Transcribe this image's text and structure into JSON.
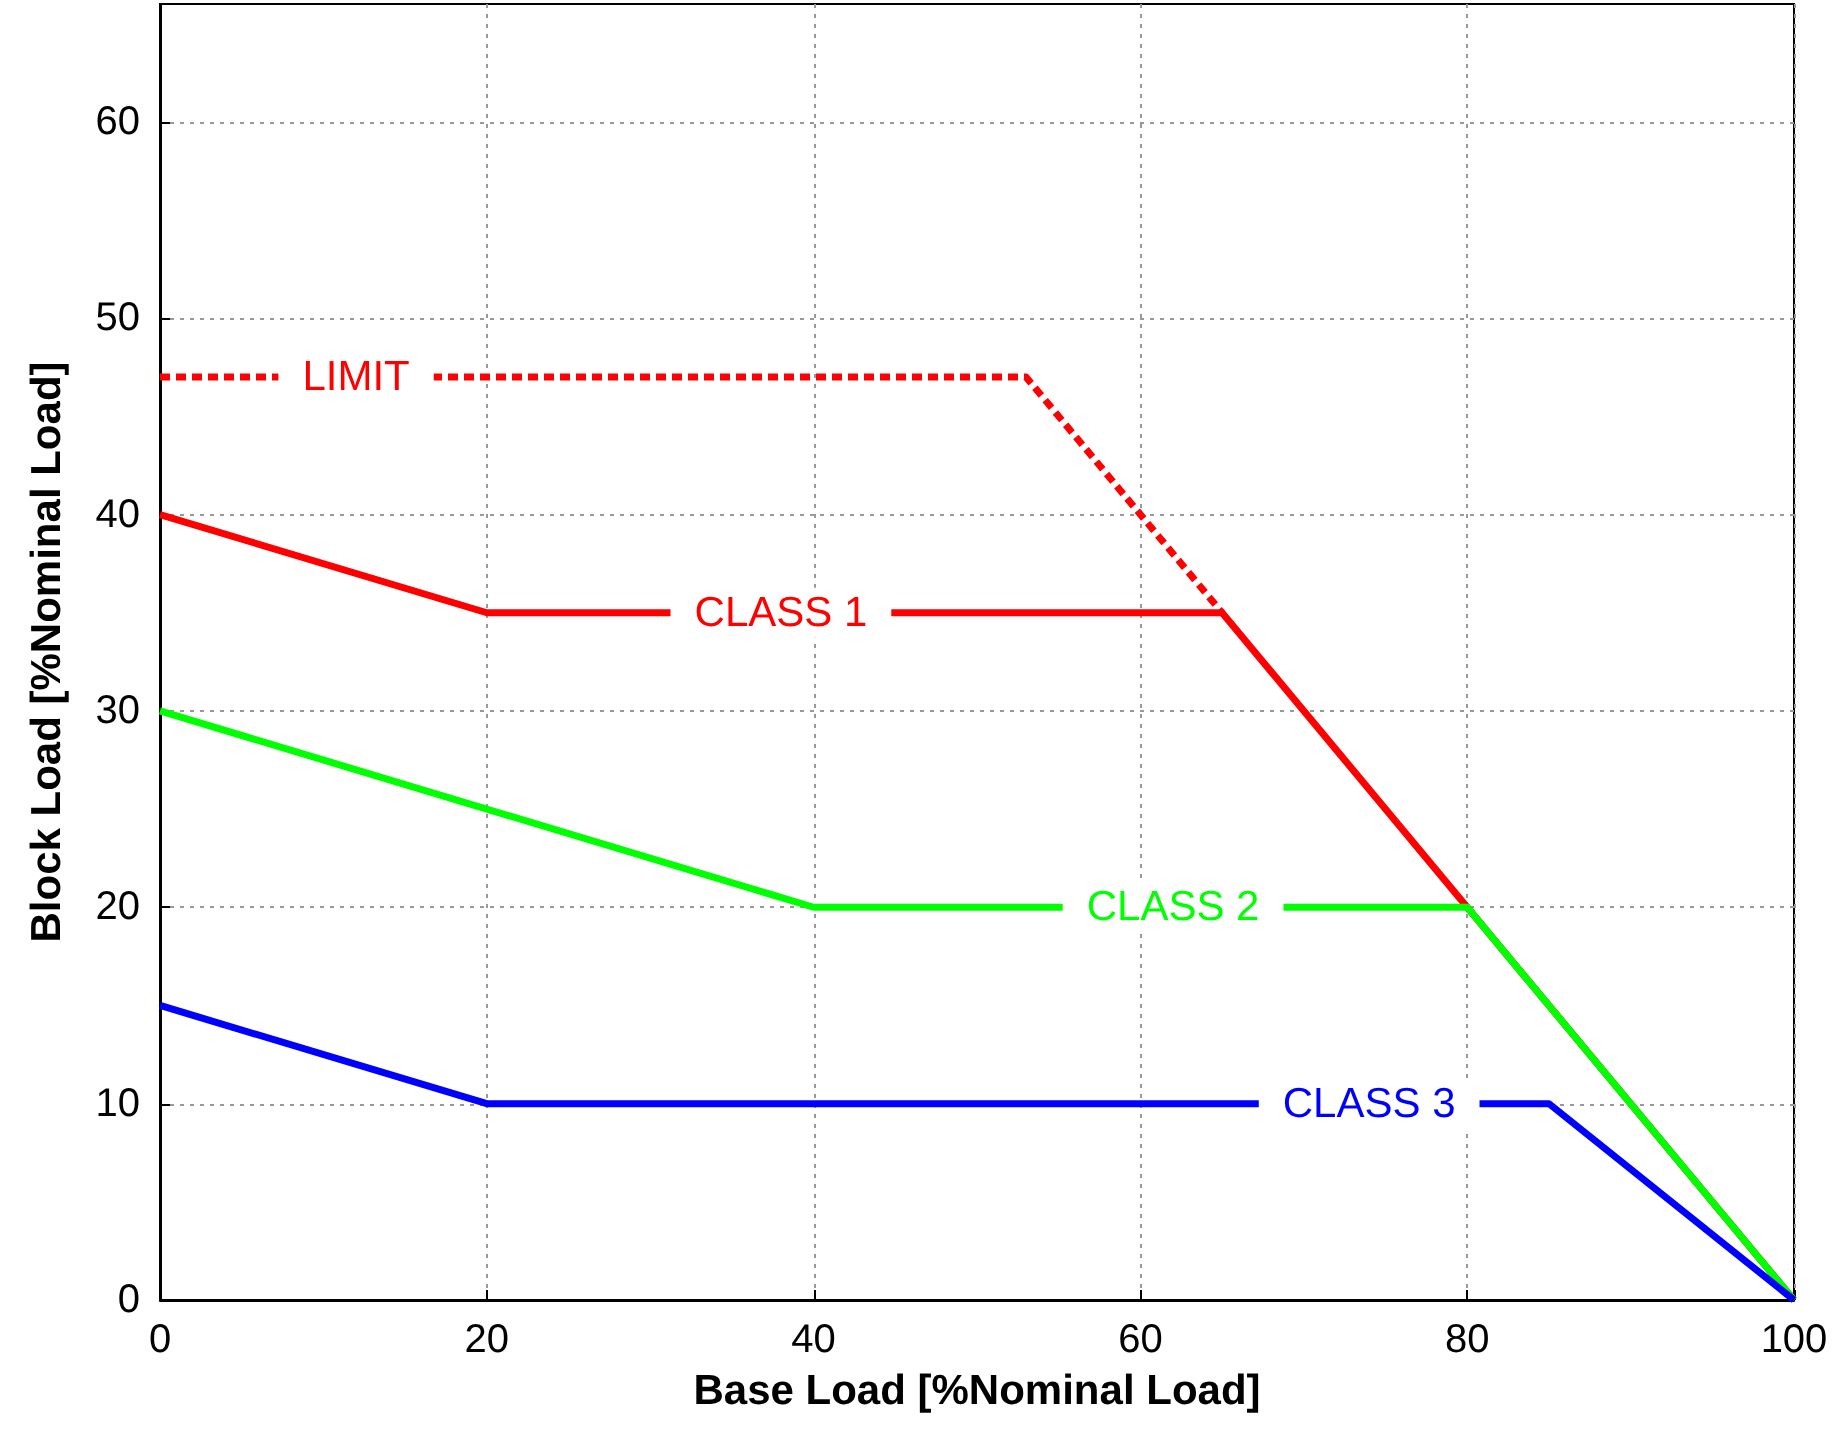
{
  "chart_data": {
    "type": "line",
    "xlabel": "Base Load [%Nominal Load]",
    "ylabel": "Block Load [%Nominal Load]",
    "xlim": [
      0,
      100
    ],
    "xticks": [
      0,
      20,
      40,
      60,
      80,
      100
    ],
    "ylim": [
      0,
      66
    ],
    "yticks": [
      0,
      10,
      20,
      30,
      40,
      50,
      60
    ],
    "grid": true,
    "marker": "none",
    "line_style": "solid",
    "series": [
      {
        "name": "LIMIT",
        "color": "#ff0000",
        "line_style": "dashed",
        "x": [
          0,
          53,
          65
        ],
        "values": [
          47,
          47,
          35
        ]
      },
      {
        "name": "CLASS 1",
        "color": "#ff0000",
        "x": [
          0,
          20,
          65,
          80,
          100
        ],
        "values": [
          40,
          35,
          35,
          20,
          0
        ]
      },
      {
        "name": "CLASS 2",
        "color": "#00ff00",
        "x": [
          0,
          40,
          80,
          100
        ],
        "values": [
          30,
          20,
          20,
          0
        ]
      },
      {
        "name": "CLASS 3",
        "color": "#0000ff",
        "x": [
          0,
          20,
          85,
          100
        ],
        "values": [
          15,
          10,
          10,
          0
        ]
      }
    ]
  }
}
